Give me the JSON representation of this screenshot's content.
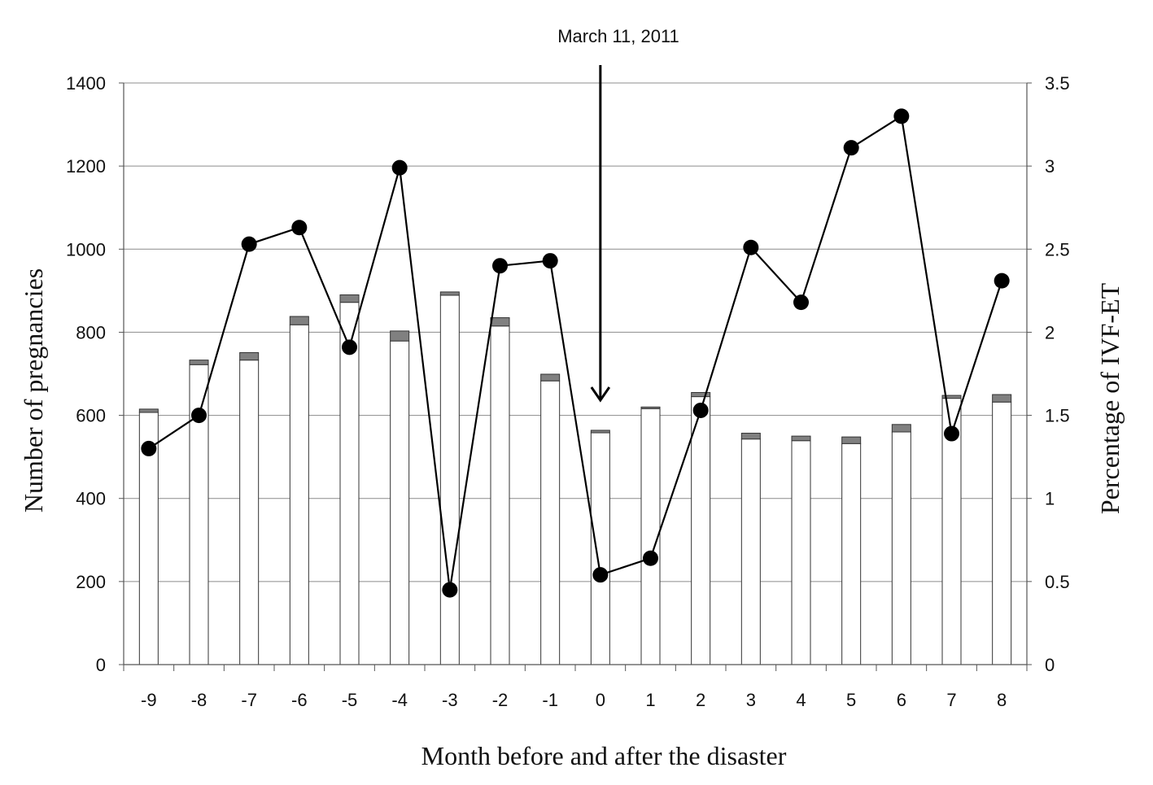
{
  "chart_data": {
    "type": "bar",
    "combo": "bar+line",
    "categories": [
      "-9",
      "-8",
      "-7",
      "-6",
      "-5",
      "-4",
      "-3",
      "-2",
      "-1",
      "0",
      "1",
      "2",
      "3",
      "4",
      "5",
      "6",
      "7",
      "8"
    ],
    "series": [
      {
        "chart": "stacked-bar",
        "axis": "left",
        "color": "#ffffff",
        "values": [
          607,
          722,
          733,
          818,
          872,
          779,
          889,
          815,
          683,
          558,
          616,
          645,
          543,
          539,
          532,
          560,
          641,
          632
        ]
      },
      {
        "chart": "stacked-bar",
        "axis": "left",
        "color": "#808080",
        "values": [
          8,
          11,
          18,
          20,
          18,
          24,
          8,
          20,
          16,
          6,
          4,
          10,
          14,
          11,
          16,
          18,
          7,
          18
        ]
      },
      {
        "chart": "line",
        "axis": "right",
        "color": "#000000",
        "marker": "filled-circle",
        "values": [
          1.3,
          1.5,
          2.53,
          2.63,
          1.91,
          2.99,
          0.45,
          2.4,
          2.43,
          0.54,
          0.64,
          1.53,
          2.51,
          2.18,
          3.11,
          3.3,
          1.39,
          2.31
        ]
      }
    ],
    "xlabel": "Month before and after the disaster",
    "ylabel": "Number of pregnancies",
    "y2label": "Percentage of IVF-ET",
    "ylim": [
      0,
      1400
    ],
    "y2lim": [
      0,
      3.5
    ],
    "yticks": [
      "0",
      "200",
      "400",
      "600",
      "800",
      "1000",
      "1200",
      "1400"
    ],
    "y2ticks": [
      "0",
      "0.5",
      "1",
      "1.5",
      "2",
      "2.5",
      "3",
      "3.5"
    ],
    "grid": "horizontal",
    "legend": "none",
    "annotation": {
      "text": "March 11, 2011",
      "category": "0",
      "style": "downward-arrow"
    }
  }
}
